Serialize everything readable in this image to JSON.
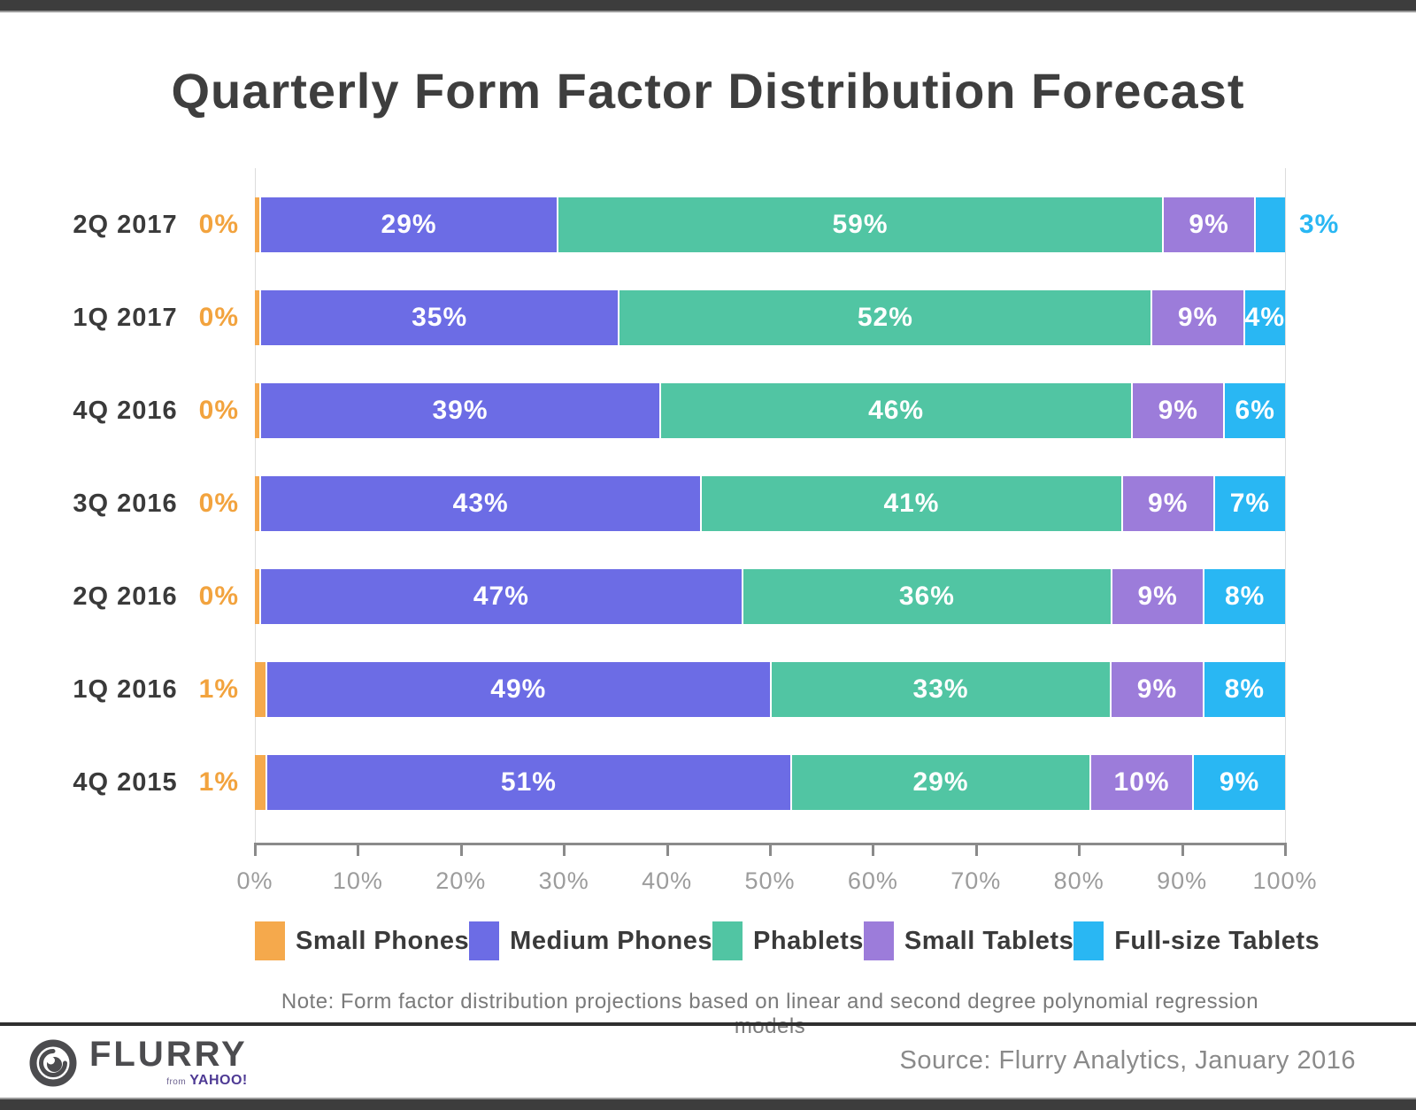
{
  "title": "Quarterly Form Factor Distribution Forecast",
  "chart_data": {
    "type": "bar",
    "orientation": "horizontal-stacked",
    "categories": [
      "2Q 2017",
      "1Q 2017",
      "4Q 2016",
      "3Q 2016",
      "2Q 2016",
      "1Q 2016",
      "4Q 2015"
    ],
    "series": [
      {
        "name": "Small Phones",
        "color": "#F5A94C",
        "label_color": "#F2A33E",
        "values": [
          0,
          0,
          0,
          0,
          0,
          1,
          1
        ]
      },
      {
        "name": "Medium Phones",
        "color": "#6C6CE5",
        "label_color": "#FFFFFF",
        "values": [
          29,
          35,
          39,
          43,
          47,
          49,
          51
        ]
      },
      {
        "name": "Phablets",
        "color": "#51C5A3",
        "label_color": "#FFFFFF",
        "values": [
          59,
          52,
          46,
          41,
          36,
          33,
          29
        ]
      },
      {
        "name": "Small Tablets",
        "color": "#9C7CDA",
        "label_color": "#FFFFFF",
        "values": [
          9,
          9,
          9,
          9,
          9,
          9,
          10
        ]
      },
      {
        "name": "Full-size Tablets",
        "color": "#29B7F3",
        "label_color": "#29B7F3",
        "values": [
          3,
          4,
          6,
          7,
          8,
          8,
          9
        ]
      }
    ],
    "x_ticks": [
      "0%",
      "10%",
      "20%",
      "30%",
      "40%",
      "50%",
      "60%",
      "70%",
      "80%",
      "90%",
      "100%"
    ],
    "xlim": [
      0,
      100
    ],
    "grid": "boundary-lines-only",
    "legend_position": "bottom",
    "value_suffix": "%"
  },
  "note": "Note: Form factor distribution projections based on linear and second degree polynomial regression models",
  "footer": {
    "logo_name": "FLURRY",
    "logo_sub_from": "from",
    "logo_sub_brand": "YAHOO!",
    "source": "Source: Flurry Analytics, January 2016"
  },
  "colors": {
    "title": "#3E3E3E",
    "axis": "#8A8A8A",
    "tick_label": "#9C9C9C",
    "gridline": "#DCDCDC",
    "top_bottom_bar": "#3D3D3D",
    "logo": "#4C4C4F",
    "yahoo_purple": "#4E3A94"
  }
}
